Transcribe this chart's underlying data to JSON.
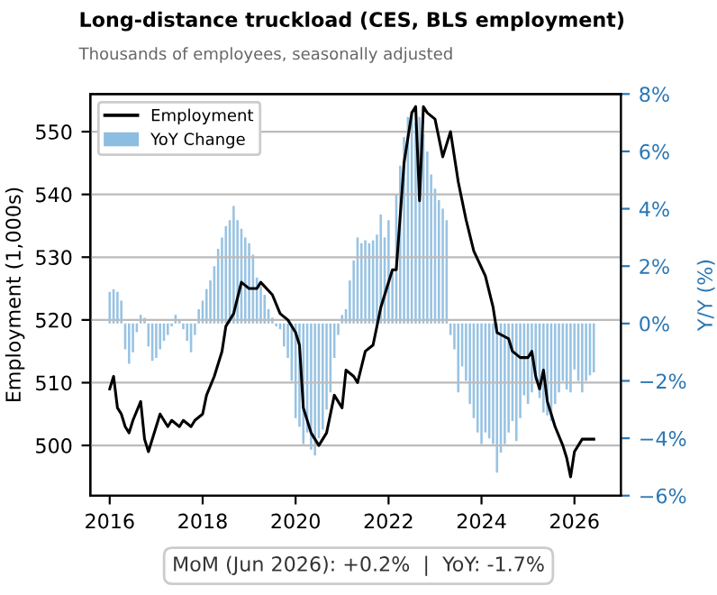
{
  "chart_data": {
    "type": "line",
    "title": "Long-distance truckload (CES, BLS employment)",
    "subtitle": "Thousands of employees, seasonally adjusted",
    "ylabel": "Employment (1,000s)",
    "y2label": "Y/Y (%)",
    "xlim": [
      "2015-08",
      "2027-01"
    ],
    "xticks": [
      {
        "value": "2016",
        "label": "2016"
      },
      {
        "value": "2018",
        "label": "2018"
      },
      {
        "value": "2020",
        "label": "2020"
      },
      {
        "value": "2022",
        "label": "2022"
      },
      {
        "value": "2024",
        "label": "2024"
      },
      {
        "value": "2026",
        "label": "2026"
      }
    ],
    "ylim": [
      492,
      556
    ],
    "yticks": [
      500,
      510,
      520,
      530,
      540,
      550
    ],
    "y2lim": [
      -6,
      8
    ],
    "y2ticks": [
      {
        "value": -6,
        "label": "−6%"
      },
      {
        "value": -4,
        "label": "−4%"
      },
      {
        "value": -2,
        "label": "−2%"
      },
      {
        "value": 0,
        "label": "0%"
      },
      {
        "value": 2,
        "label": "2%"
      },
      {
        "value": 4,
        "label": "4%"
      },
      {
        "value": 6,
        "label": "6%"
      },
      {
        "value": 8,
        "label": "8%"
      }
    ],
    "grid": "y",
    "legend": "top left",
    "annotations": [
      "MoM (Jun 2026): +0.2%  |  YoY: -1.7%"
    ],
    "series": [
      {
        "name": "YoY Change",
        "type": "bar",
        "axis": "y2",
        "color": "#8dbde0",
        "x": [
          "2016-01",
          "2016-02",
          "2016-03",
          "2016-04",
          "2016-05",
          "2016-06",
          "2016-07",
          "2016-08",
          "2016-09",
          "2016-10",
          "2016-11",
          "2016-12",
          "2017-01",
          "2017-02",
          "2017-03",
          "2017-04",
          "2017-05",
          "2017-06",
          "2017-07",
          "2017-08",
          "2017-09",
          "2017-10",
          "2017-11",
          "2017-12",
          "2018-01",
          "2018-02",
          "2018-03",
          "2018-04",
          "2018-05",
          "2018-06",
          "2018-07",
          "2018-08",
          "2018-09",
          "2018-10",
          "2018-11",
          "2018-12",
          "2019-01",
          "2019-02",
          "2019-03",
          "2019-04",
          "2019-05",
          "2019-06",
          "2019-07",
          "2019-08",
          "2019-09",
          "2019-10",
          "2019-11",
          "2019-12",
          "2020-01",
          "2020-02",
          "2020-03",
          "2020-04",
          "2020-05",
          "2020-06",
          "2020-07",
          "2020-08",
          "2020-09",
          "2020-10",
          "2020-11",
          "2020-12",
          "2021-01",
          "2021-02",
          "2021-03",
          "2021-04",
          "2021-05",
          "2021-06",
          "2021-07",
          "2021-08",
          "2021-09",
          "2021-10",
          "2021-11",
          "2021-12",
          "2022-01",
          "2022-02",
          "2022-03",
          "2022-04",
          "2022-05",
          "2022-06",
          "2022-07",
          "2022-08",
          "2022-09",
          "2022-10",
          "2022-11",
          "2022-12",
          "2023-01",
          "2023-02",
          "2023-03",
          "2023-04",
          "2023-05",
          "2023-06",
          "2023-07",
          "2023-08",
          "2023-09",
          "2023-10",
          "2023-11",
          "2023-12",
          "2024-01",
          "2024-02",
          "2024-03",
          "2024-04",
          "2024-05",
          "2024-06",
          "2024-07",
          "2024-08",
          "2024-09",
          "2024-10",
          "2024-11",
          "2024-12",
          "2025-01",
          "2025-02",
          "2025-03",
          "2025-04",
          "2025-05",
          "2025-06",
          "2025-07",
          "2025-08",
          "2025-09",
          "2025-10",
          "2025-11",
          "2025-12",
          "2026-01",
          "2026-02",
          "2026-03",
          "2026-04",
          "2026-05",
          "2026-06"
        ],
        "values": [
          1.1,
          1.2,
          1.1,
          0.8,
          -0.9,
          -1.4,
          -1.0,
          -0.3,
          0.3,
          0.2,
          -0.8,
          -1.3,
          -1.2,
          -0.9,
          -0.6,
          -0.4,
          -0.1,
          0.3,
          0.1,
          -0.2,
          -0.6,
          -1.0,
          -0.4,
          0.5,
          0.8,
          1.2,
          1.5,
          2.0,
          2.6,
          3.0,
          3.4,
          3.6,
          4.1,
          3.6,
          3.3,
          3.0,
          2.8,
          2.4,
          1.6,
          1.3,
          1.0,
          0.5,
          0.2,
          -0.1,
          -0.2,
          -0.8,
          -1.2,
          -2.0,
          -3.3,
          -3.6,
          -4.2,
          -3.8,
          -4.4,
          -4.6,
          -4.0,
          -3.7,
          -3.0,
          -2.4,
          -1.2,
          -0.4,
          0.3,
          0.5,
          1.5,
          2.2,
          3.0,
          2.8,
          2.9,
          2.8,
          2.9,
          3.1,
          3.8,
          3.0,
          3.6,
          1.8,
          4.5,
          5.5,
          6.5,
          7.2,
          7.4,
          7.0,
          7.2,
          6.6,
          6.0,
          5.2,
          4.7,
          4.3,
          4.0,
          3.6,
          -0.4,
          -0.9,
          -2.4,
          -1.5,
          -2.0,
          -2.8,
          -3.3,
          -3.8,
          -4.2,
          -3.8,
          -4.0,
          -4.2,
          -5.2,
          -4.5,
          -4.2,
          -3.8,
          -3.4,
          -4.1,
          -3.3,
          -2.5,
          -2.8,
          -2.4,
          -2.0,
          -2.6,
          -3.1,
          -3.2,
          -3.4,
          -2.8,
          -2.4,
          -2.0,
          -2.3,
          -2.4,
          -1.6,
          -2.0,
          -2.4,
          -2.0,
          -1.8,
          -1.7
        ]
      },
      {
        "name": "Employment",
        "color": "#000000",
        "x": [
          "2016-01",
          "2016-02",
          "2016-03",
          "2016-04",
          "2016-05",
          "2016-06",
          "2016-07",
          "2016-09",
          "2016-10",
          "2016-11",
          "2017-01",
          "2017-02",
          "2017-04",
          "2017-05",
          "2017-07",
          "2017-08",
          "2017-10",
          "2017-11",
          "2018-01",
          "2018-02",
          "2018-04",
          "2018-06",
          "2018-07",
          "2018-09",
          "2018-11",
          "2019-01",
          "2019-03",
          "2019-04",
          "2019-07",
          "2019-09",
          "2019-11",
          "2020-01",
          "2020-02",
          "2020-03",
          "2020-05",
          "2020-07",
          "2020-09",
          "2020-11",
          "2021-01",
          "2021-02",
          "2021-04",
          "2021-05",
          "2021-07",
          "2021-09",
          "2021-11",
          "2022-02",
          "2022-03",
          "2022-05",
          "2022-06",
          "2022-07",
          "2022-08",
          "2022-09",
          "2022-10",
          "2022-11",
          "2023-01",
          "2023-03",
          "2023-05",
          "2023-07",
          "2023-09",
          "2023-11",
          "2024-02",
          "2024-04",
          "2024-05",
          "2024-08",
          "2024-09",
          "2024-11",
          "2025-01",
          "2025-02",
          "2025-03",
          "2025-04",
          "2025-05",
          "2025-06",
          "2025-07",
          "2025-08",
          "2025-10",
          "2025-11",
          "2025-12",
          "2026-01",
          "2026-03",
          "2026-06"
        ],
        "values": [
          509,
          511,
          506,
          505,
          503,
          502,
          504,
          507,
          501,
          499,
          503,
          505,
          503,
          504,
          503,
          504,
          503,
          504,
          505,
          508,
          511,
          515,
          519,
          521,
          526,
          525,
          525,
          526,
          524,
          521,
          520,
          518,
          516,
          506,
          502,
          500,
          502,
          508,
          506,
          512,
          511,
          510,
          515,
          516,
          522,
          528,
          528,
          545,
          549,
          553,
          554,
          539,
          554,
          553,
          552,
          546,
          550,
          542,
          536,
          531,
          527,
          522,
          518,
          517,
          515,
          514,
          514,
          515,
          511,
          509,
          512,
          507,
          505,
          503,
          500,
          498,
          495,
          499,
          501,
          501
        ]
      }
    ]
  }
}
